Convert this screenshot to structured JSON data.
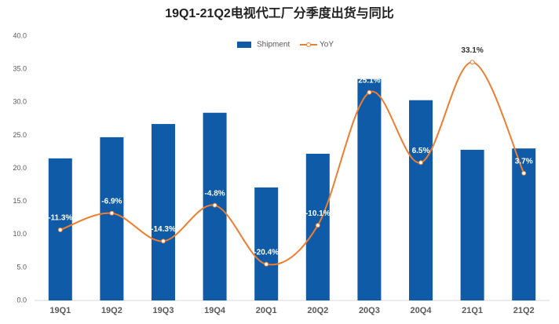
{
  "chart_data": {
    "type": "bar-line",
    "title": "19Q1-21Q2电视代工厂分季度出货与同比",
    "categories": [
      "19Q1",
      "19Q2",
      "19Q3",
      "19Q4",
      "20Q1",
      "20Q2",
      "20Q3",
      "20Q4",
      "21Q1",
      "21Q2"
    ],
    "series": [
      {
        "name": "Shipment",
        "type": "bar",
        "color": "#0f5ba8",
        "values": [
          21.5,
          24.7,
          26.7,
          28.4,
          17.1,
          22.2,
          33.5,
          30.3,
          22.8,
          23.0
        ]
      },
      {
        "name": "YoY",
        "type": "line",
        "axis": "y2",
        "color": "#ed7d31",
        "values": [
          -11.3,
          -6.9,
          -14.3,
          -4.8,
          -20.4,
          -10.1,
          25.1,
          6.5,
          33.1,
          3.7
        ],
        "value_labels": [
          "-11.3%",
          "-6.9%",
          "-14.3%",
          "-4.8%",
          "-20.4%",
          "-10.1%",
          "25.1%",
          "6.5%",
          "33.1%",
          "3.7%"
        ]
      }
    ],
    "ylim": [
      0,
      40
    ],
    "yticks": [
      {
        "value": 0,
        "label": "0.0"
      },
      {
        "value": 5,
        "label": "5.0"
      },
      {
        "value": 10,
        "label": "10.0"
      },
      {
        "value": 15,
        "label": "15.0"
      },
      {
        "value": 20,
        "label": "20.0"
      },
      {
        "value": 25,
        "label": "25.0"
      },
      {
        "value": 30,
        "label": "30.0"
      },
      {
        "value": 35,
        "label": "35.0"
      },
      {
        "value": 40,
        "label": "40.0"
      }
    ],
    "y2lim": [
      -30,
      40
    ],
    "legend": "top"
  }
}
